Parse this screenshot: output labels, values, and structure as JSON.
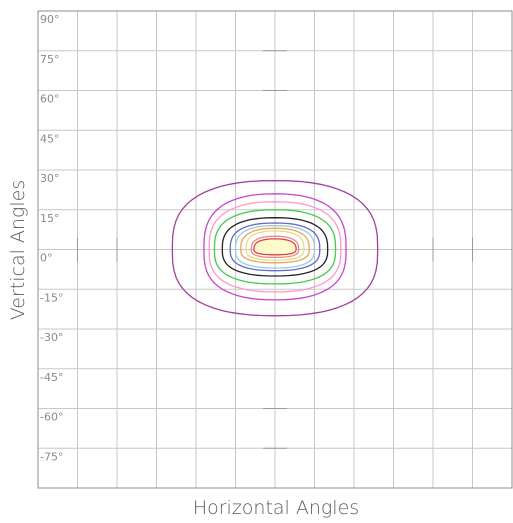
{
  "chart_data": {
    "type": "contour",
    "title": "",
    "xlabel": "Horizontal Angles",
    "ylabel": "Vertical Angles",
    "xlim": [
      -90,
      90
    ],
    "ylim": [
      -90,
      90
    ],
    "y_ticks": [
      90,
      75,
      60,
      45,
      30,
      15,
      0,
      -15,
      -30,
      -45,
      -60,
      -75
    ],
    "y_tick_labels": [
      "90°",
      "75°",
      "60°",
      "45°",
      "30°",
      "15°",
      "0°",
      "-15°",
      "-30°",
      "-45°",
      "-60°",
      "-75°"
    ],
    "grid": true,
    "legend": "none",
    "contours": [
      {
        "color": "#a040a0",
        "hwidth": 39,
        "vtop": 26,
        "vbot": -25
      },
      {
        "color": "#cc44cc",
        "hwidth": 27,
        "vtop": 21,
        "vbot": -19
      },
      {
        "color": "#ff99cc",
        "hwidth": 25,
        "vtop": 18,
        "vbot": -16
      },
      {
        "color": "#44cc44",
        "hwidth": 23,
        "vtop": 15,
        "vbot": -13
      },
      {
        "color": "#222222",
        "hwidth": 20,
        "vtop": 12,
        "vbot": -10
      },
      {
        "color": "#6666cc",
        "hwidth": 17,
        "vtop": 10,
        "vbot": -8
      },
      {
        "color": "#99ccdd",
        "hwidth": 15,
        "vtop": 9,
        "vbot": -7
      },
      {
        "color": "#f0a060",
        "hwidth": 13,
        "vtop": 8,
        "vbot": -5
      },
      {
        "color": "#e0e080",
        "hwidth": 11,
        "vtop": 7,
        "vbot": -4
      },
      {
        "color": "#ee8888",
        "hwidth": 9,
        "vtop": 5,
        "vbot": -3
      },
      {
        "color": "#dd4444",
        "hwidth": 8,
        "vtop": 4,
        "vbot": -2
      }
    ],
    "colors": {
      "grid": "#c8c8c8",
      "frame": "#8c8c8c",
      "fill_core": "#fff9cc"
    }
  }
}
